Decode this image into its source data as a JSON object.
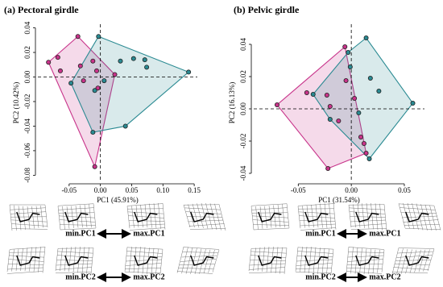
{
  "chart_data": [
    {
      "type": "scatter",
      "title": "(a) Pectoral girdle",
      "x_label": "PC1 (45.91%)",
      "y_label": "PC2 (10.42%)",
      "xlim": [
        -0.1,
        0.155
      ],
      "ylim": [
        -0.085,
        0.043
      ],
      "xticks": [
        -0.05,
        {
          "value": 0,
          "label": "0.00"
        },
        0.05,
        {
          "value": 0.1,
          "label": "0.10"
        },
        0.15
      ],
      "yticks": [
        0.04,
        0.02,
        {
          "value": 0,
          "label": "0.00"
        },
        -0.02,
        -0.04,
        -0.06,
        -0.08
      ],
      "series": [
        {
          "color": "#c8338a",
          "x": [
            -0.083,
            -0.036,
            -0.068,
            -0.064,
            -0.009,
            -0.012,
            -0.027,
            0.023,
            -0.006,
            -0.004,
            -0.032
          ],
          "values": [
            0.012,
            0.033,
            0.016,
            0.005,
            -0.073,
            0.013,
            -0.003,
            0.002,
            0.005,
            -0.009,
            0.009
          ]
        },
        {
          "color": "#2a8a92",
          "x": [
            -0.003,
            0.141,
            0.04,
            -0.012,
            -0.047,
            0.032,
            0.053,
            0.071,
            0.074,
            0.006,
            -0.009
          ],
          "values": [
            0.033,
            0.004,
            -0.04,
            -0.045,
            -0.005,
            0.013,
            0.015,
            0.014,
            0.008,
            -0.003,
            -0.011
          ]
        }
      ],
      "annotations": [
        "min.PC1",
        "max.PC1",
        "min.PC2",
        "max.PC2"
      ]
    },
    {
      "type": "scatter",
      "title": "(b) Pelvic girdle",
      "x_label": "PC1 (31.54%)",
      "y_label": "PC2 (16.13%)",
      "xlim": [
        -0.092,
        0.069
      ],
      "ylim": [
        -0.045,
        0.0525
      ],
      "xticks": [
        -0.05,
        {
          "value": 0,
          "label": "0.00"
        },
        0.05
      ],
      "yticks": [
        0.04,
        0.02,
        {
          "value": 0,
          "label": "0.00"
        },
        -0.02,
        -0.04
      ],
      "series": [
        {
          "color": "#c8338a",
          "x": [
            -0.07,
            -0.022,
            -0.006,
            0.014,
            -0.042,
            -0.023,
            -0.02,
            -0.005,
            0.003,
            0.009,
            0.012,
            -0.012
          ],
          "values": [
            0.0025,
            -0.037,
            0.0385,
            -0.0275,
            0.01,
            0.0085,
            0.0015,
            0.0175,
            0.0065,
            -0.0175,
            -0.0215,
            -0.0075
          ]
        },
        {
          "color": "#2a8a92",
          "x": [
            0.014,
            0.058,
            0.017,
            -0.036,
            -0.003,
            0.018,
            0.026,
            -0.001,
            -0.02,
            0.007
          ],
          "values": [
            0.044,
            0.0035,
            -0.031,
            0.009,
            0.035,
            0.019,
            0.011,
            0.026,
            -0.0065,
            -0.0025
          ]
        }
      ],
      "annotations": [
        "min.PC1",
        "max.PC1",
        "min.PC2",
        "max.PC2"
      ]
    }
  ]
}
